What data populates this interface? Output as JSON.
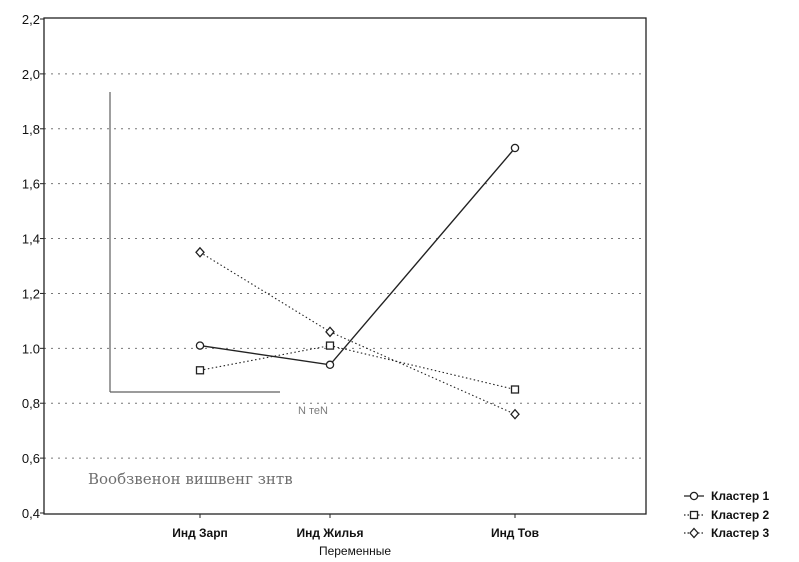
{
  "chart_data": {
    "type": "line",
    "categories": [
      "Инд Зарп",
      "Инд Жилья",
      "Инд Тов"
    ],
    "xlabel": "Переменные",
    "ylabel": "",
    "ylim": [
      0.4,
      2.2
    ],
    "yticks": [
      "0,4",
      "0,6",
      "0,8",
      "1.0",
      "1,2",
      "1,4",
      "1,6",
      "1,8",
      "2,0",
      "2,2"
    ],
    "grid": "horizontal dotted",
    "legend": "bottom-right",
    "series": [
      {
        "name": "Кластер 1",
        "marker": "circle",
        "line": "solid",
        "values": [
          1.01,
          0.94,
          1.73
        ]
      },
      {
        "name": "Кластер 2",
        "marker": "square",
        "line": "dotted",
        "values": [
          0.92,
          1.01,
          0.85
        ]
      },
      {
        "name": "Кластер 3",
        "marker": "diamond",
        "line": "dotted",
        "values": [
          1.35,
          1.06,
          0.76
        ]
      }
    ]
  },
  "overlay": {
    "text_main": "Вообзвенoн вишвенг знтв",
    "text_mid": "N теN"
  },
  "colors": {
    "line": "#222222",
    "grid": "#777777",
    "background": "#ffffff"
  }
}
